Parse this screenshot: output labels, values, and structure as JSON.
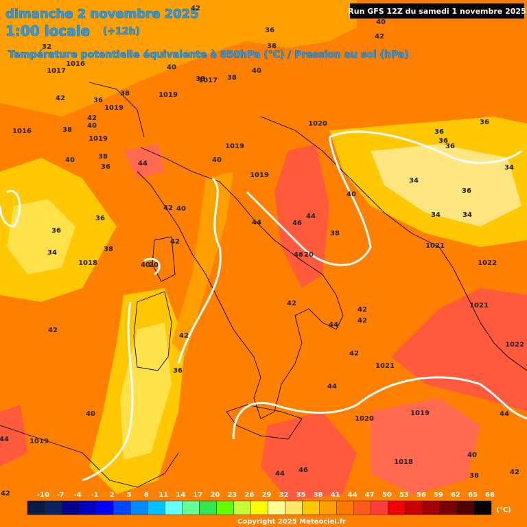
{
  "header": {
    "title": "dimanche 2 novembre 2025",
    "time": "1:00 locale",
    "offset": "(+12h)",
    "subtitle": "Température potentielle équivalente à 850hPa (°C) / Pression au sol (hPa)",
    "run": "Run GFS 12Z du samedi 1 novembre 2025"
  },
  "map_labels": [
    42,
    40,
    42,
    36,
    38,
    32,
    1016,
    1017,
    40,
    1017,
    38,
    38,
    40,
    1019,
    42,
    38,
    36,
    1019,
    1020,
    42,
    40,
    1016,
    38,
    1019,
    36,
    36,
    36,
    36,
    40,
    44,
    38,
    36,
    40,
    1019,
    1019,
    34,
    34,
    36,
    40,
    42,
    40,
    34,
    34,
    36,
    44,
    46,
    44,
    36,
    38,
    42,
    38,
    34,
    1018,
    1021,
    1022,
    46,
    20,
    40,
    20,
    42,
    42,
    42,
    44,
    1021,
    42,
    42,
    42,
    1021,
    1022,
    36,
    44,
    40,
    1020,
    1019,
    44,
    1019,
    44,
    1018,
    40,
    46,
    44,
    38,
    42,
    42
  ],
  "scale": {
    "labels": [
      -10,
      -7,
      -4,
      -1,
      2,
      5,
      8,
      11,
      14,
      17,
      20,
      23,
      26,
      29,
      32,
      35,
      38,
      41,
      44,
      47,
      50,
      53,
      56,
      59,
      62,
      65,
      68
    ],
    "colors": [
      "#0b1a40",
      "#0a2460",
      "#00008c",
      "#0000c0",
      "#0000ff",
      "#0046ff",
      "#008cff",
      "#00c0ff",
      "#64ffff",
      "#64ff96",
      "#32e650",
      "#64ff00",
      "#c8ff32",
      "#ffff00",
      "#ffff96",
      "#ffe664",
      "#ffc800",
      "#ffa000",
      "#ff7800",
      "#ff5a1e",
      "#ff3c3c",
      "#f00000",
      "#c80000",
      "#a00000",
      "#780000",
      "#500000",
      "#000000"
    ],
    "unit": "(°C)"
  },
  "copyright": "Copyright 2025 Meteociel.fr"
}
